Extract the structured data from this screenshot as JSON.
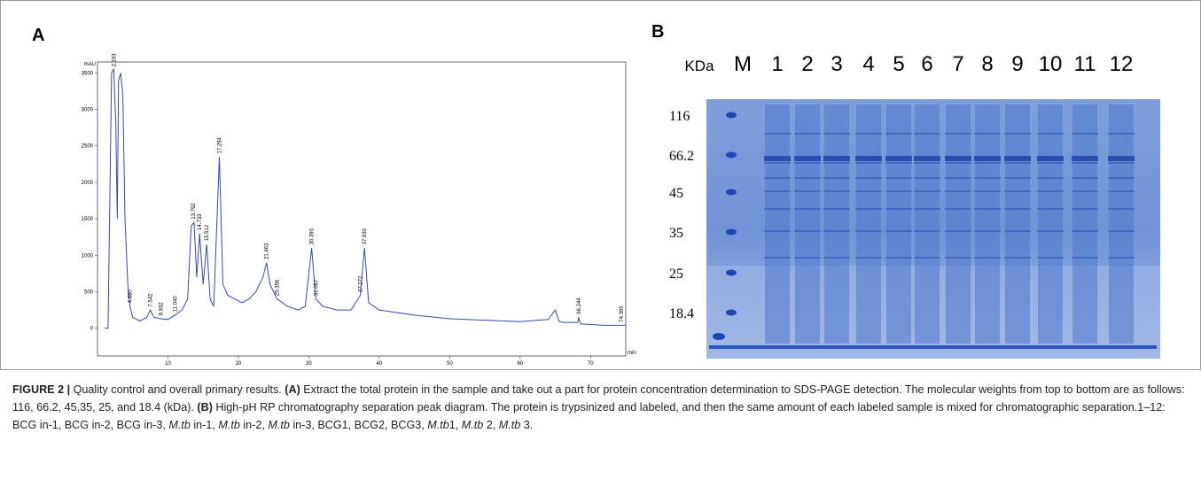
{
  "panels": {
    "a": "A",
    "b": "B"
  },
  "chart_data": {
    "type": "line",
    "y_label": "mAU",
    "x_label": "min",
    "xlim": [
      0,
      75
    ],
    "ylim": [
      -380,
      3650
    ],
    "xticks": [
      10,
      20,
      30,
      40,
      50,
      60,
      70
    ],
    "yticks": [
      0,
      500,
      1000,
      1500,
      2000,
      2500,
      3000,
      3500
    ],
    "color": "#3a4aa8",
    "x": [
      1,
      1.5,
      2.0,
      2.3,
      2.6,
      2.8,
      3.0,
      3.3,
      3.6,
      3.9,
      4.3,
      4.6,
      5,
      6,
      7,
      7.5,
      8,
      9,
      10,
      11,
      12,
      12.8,
      13.3,
      13.7,
      14.1,
      14.5,
      15,
      15.5,
      16,
      16.5,
      17.3,
      17.8,
      18.5,
      19.5,
      20.5,
      21.5,
      22.5,
      23.5,
      24,
      24.5,
      25.5,
      27,
      28.5,
      29.5,
      30.4,
      31,
      32,
      34,
      36,
      37.3,
      37.9,
      38.5,
      40,
      45,
      50,
      55,
      60,
      64,
      65,
      65.5,
      66,
      68.2,
      68.3,
      68.6,
      72,
      75
    ],
    "values": [
      0,
      0,
      3500,
      3550,
      2800,
      1500,
      3400,
      3500,
      3200,
      1500,
      600,
      300,
      150,
      100,
      150,
      250,
      150,
      130,
      120,
      180,
      250,
      400,
      1400,
      1450,
      700,
      1300,
      600,
      1150,
      400,
      300,
      2350,
      600,
      450,
      400,
      350,
      400,
      500,
      700,
      900,
      600,
      400,
      300,
      250,
      300,
      1100,
      400,
      300,
      250,
      250,
      450,
      1100,
      350,
      250,
      180,
      130,
      110,
      90,
      120,
      250,
      100,
      80,
      80,
      150,
      60,
      40,
      40
    ],
    "annotations": [
      {
        "text": "2.193",
        "x": 2.3,
        "y": 3560
      },
      {
        "text": "4.880",
        "x": 4.6,
        "y": 320
      },
      {
        "text": "7.542",
        "x": 7.5,
        "y": 270
      },
      {
        "text": "8.932",
        "x": 9,
        "y": 150
      },
      {
        "text": "11.040",
        "x": 11,
        "y": 200
      },
      {
        "text": "13.792",
        "x": 13.6,
        "y": 1470
      },
      {
        "text": "14.733",
        "x": 14.5,
        "y": 1320
      },
      {
        "text": "15.512",
        "x": 15.5,
        "y": 1170
      },
      {
        "text": "17.294",
        "x": 17.3,
        "y": 2370
      },
      {
        "text": "21.463",
        "x": 24,
        "y": 920
      },
      {
        "text": "25.356",
        "x": 25.5,
        "y": 420
      },
      {
        "text": "30.390",
        "x": 30.4,
        "y": 1120
      },
      {
        "text": "31.067",
        "x": 31,
        "y": 420
      },
      {
        "text": "37.272",
        "x": 37.3,
        "y": 470
      },
      {
        "text": "37.930",
        "x": 37.9,
        "y": 1120
      },
      {
        "text": "66.244",
        "x": 68.3,
        "y": 170
      },
      {
        "text": "74.395",
        "x": 74.4,
        "y": 60
      }
    ]
  },
  "gel": {
    "unit": "KDa",
    "lanes": [
      "M",
      "1",
      "2",
      "3",
      "4",
      "5",
      "6",
      "7",
      "8",
      "9",
      "10",
      "11",
      "12"
    ],
    "markers": [
      "116",
      "66.2",
      "45",
      "35",
      "25",
      "18.4"
    ]
  },
  "caption": {
    "segments": [
      {
        "text": "FIGURE 2 |",
        "style": "bold"
      },
      {
        "text": " Quality control and overall primary results. ",
        "style": "normal"
      },
      {
        "text": "(A)",
        "style": "bold"
      },
      {
        "text": " Extract the total protein in the sample and take out a part for protein concentration determination to SDS-PAGE detection. The molecular weights from top to bottom are as follows: 116, 66.2, 45,35, 25, and 18.4 (kDa). ",
        "style": "normal"
      },
      {
        "text": "(B)",
        "style": "bold"
      },
      {
        "text": " High-pH RP chromatography separation peak diagram. The protein is trypsinized and labeled, and then the same amount of each labeled sample is mixed for chromatographic separation.1–12: BCG in-1, BCG in-2, BCG in-3, ",
        "style": "normal"
      },
      {
        "text": "M.tb",
        "style": "italic"
      },
      {
        "text": " in-1, ",
        "style": "normal"
      },
      {
        "text": "M.tb",
        "style": "italic"
      },
      {
        "text": " in-2, ",
        "style": "normal"
      },
      {
        "text": "M.tb",
        "style": "italic"
      },
      {
        "text": " in-3, BCG1, BCG2, BCG3, ",
        "style": "normal"
      },
      {
        "text": "M.tb",
        "style": "italic"
      },
      {
        "text": "1, ",
        "style": "normal"
      },
      {
        "text": "M.tb",
        "style": "italic"
      },
      {
        "text": " 2, ",
        "style": "normal"
      },
      {
        "text": "M.tb",
        "style": "italic"
      },
      {
        "text": " 3.",
        "style": "normal"
      }
    ]
  }
}
